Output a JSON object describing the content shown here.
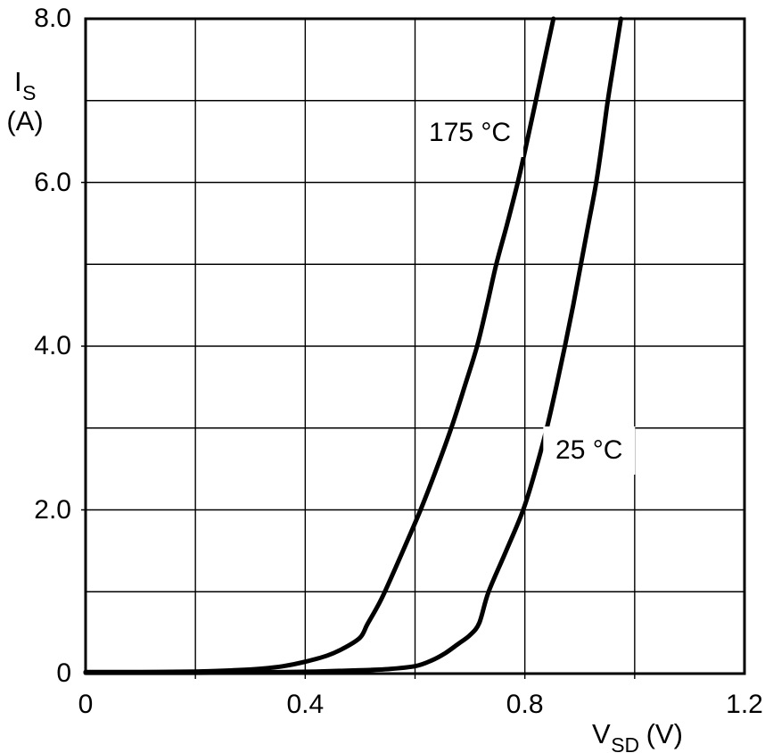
{
  "page": {
    "background": "#ffffff"
  },
  "chart_data": {
    "type": "line",
    "title": "",
    "xlabel": {
      "symbol": "V",
      "subscript": "SD",
      "unit": "(V)"
    },
    "ylabel": {
      "symbol": "I",
      "subscript": "S",
      "unit": "(A)"
    },
    "xlim": [
      0,
      1.2
    ],
    "ylim": [
      0,
      8
    ],
    "x_grid_step": 0.2,
    "y_grid_step": 1.0,
    "grid": true,
    "legend_position": "none",
    "x_ticks": [
      {
        "value": 0,
        "label": "0"
      },
      {
        "value": 0.4,
        "label": "0.4"
      },
      {
        "value": 0.8,
        "label": "0.8"
      },
      {
        "value": 1.2,
        "label": "1.2"
      }
    ],
    "y_ticks": [
      {
        "value": 8,
        "label": "8.0"
      },
      {
        "value": 6,
        "label": "6.0"
      },
      {
        "value": 4,
        "label": "4.0"
      },
      {
        "value": 2,
        "label": "2.0"
      },
      {
        "value": 0,
        "label": "0"
      }
    ],
    "series": [
      {
        "name": "175 °C",
        "color": "#000000",
        "points": [
          [
            0.0,
            0.02
          ],
          [
            0.1,
            0.02
          ],
          [
            0.2,
            0.025
          ],
          [
            0.27,
            0.04
          ],
          [
            0.32,
            0.06
          ],
          [
            0.36,
            0.09
          ],
          [
            0.4,
            0.145
          ],
          [
            0.44,
            0.22
          ],
          [
            0.47,
            0.31
          ],
          [
            0.5,
            0.44
          ],
          [
            0.513,
            0.6
          ],
          [
            0.53,
            0.8
          ],
          [
            0.545,
            1.0
          ],
          [
            0.578,
            1.5
          ],
          [
            0.61,
            2.0
          ],
          [
            0.639,
            2.5
          ],
          [
            0.666,
            3.0
          ],
          [
            0.69,
            3.5
          ],
          [
            0.713,
            4.0
          ],
          [
            0.731,
            4.5
          ],
          [
            0.748,
            5.0
          ],
          [
            0.768,
            5.5
          ],
          [
            0.787,
            6.0
          ],
          [
            0.804,
            6.5
          ],
          [
            0.82,
            7.0
          ],
          [
            0.836,
            7.5
          ],
          [
            0.852,
            8.0
          ]
        ]
      },
      {
        "name": "25 °C",
        "color": "#000000",
        "points": [
          [
            0.0,
            0.01
          ],
          [
            0.2,
            0.01
          ],
          [
            0.32,
            0.015
          ],
          [
            0.42,
            0.025
          ],
          [
            0.5,
            0.04
          ],
          [
            0.55,
            0.055
          ],
          [
            0.6,
            0.09
          ],
          [
            0.63,
            0.16
          ],
          [
            0.655,
            0.25
          ],
          [
            0.68,
            0.37
          ],
          [
            0.7,
            0.47
          ],
          [
            0.717,
            0.62
          ],
          [
            0.734,
            1.0
          ],
          [
            0.766,
            1.5
          ],
          [
            0.797,
            2.0
          ],
          [
            0.82,
            2.5
          ],
          [
            0.84,
            3.0
          ],
          [
            0.857,
            3.5
          ],
          [
            0.873,
            4.0
          ],
          [
            0.888,
            4.5
          ],
          [
            0.902,
            5.0
          ],
          [
            0.916,
            5.5
          ],
          [
            0.93,
            6.0
          ],
          [
            0.941,
            6.5
          ],
          [
            0.951,
            7.0
          ],
          [
            0.963,
            7.5
          ],
          [
            0.975,
            8.0
          ]
        ]
      }
    ],
    "annotations": [
      {
        "text": "175 °C",
        "x": 0.7,
        "y": 6.6
      },
      {
        "text": "25 °C",
        "x": 0.917,
        "y": 2.72
      }
    ],
    "line_width": 5,
    "colors": {
      "axis": "#000000",
      "grid": "#000000",
      "text": "#000000",
      "background": "#ffffff"
    }
  }
}
